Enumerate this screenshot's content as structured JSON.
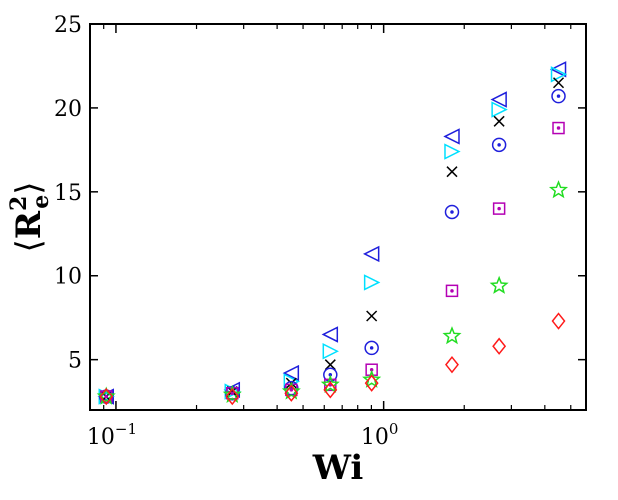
{
  "chart_data": {
    "type": "scatter",
    "xscale": "log",
    "xlim": [
      0.08,
      5.7
    ],
    "ylim": [
      2,
      25
    ],
    "grid": false,
    "xlabel": "Wi",
    "ylabel": {
      "base": "R",
      "subscript": "e",
      "superscript": "2"
    },
    "yticks": [
      5,
      10,
      15,
      20,
      25
    ],
    "xticks": [
      {
        "value": 0.1,
        "base": "10",
        "exp": "−1"
      },
      {
        "value": 1,
        "base": "10",
        "exp": "0"
      }
    ],
    "x": [
      0.092,
      0.272,
      0.452,
      0.632,
      0.902,
      1.8,
      2.7,
      4.5
    ],
    "series": [
      {
        "marker": "triangle-left",
        "color": "#1f1fdc",
        "values": [
          2.8,
          3.2,
          4.2,
          6.5,
          11.3,
          18.3,
          20.5,
          22.3
        ]
      },
      {
        "marker": "triangle-right",
        "color": "#00e0ff",
        "values": [
          2.8,
          3.1,
          3.7,
          5.5,
          9.6,
          17.4,
          19.9,
          22.0
        ]
      },
      {
        "marker": "x",
        "color": "#000000",
        "values": [
          2.8,
          3.1,
          3.6,
          4.7,
          7.6,
          16.2,
          19.2,
          21.5
        ]
      },
      {
        "marker": "circle-dot",
        "color": "#1f1fdc",
        "values": [
          2.8,
          3.0,
          3.3,
          4.1,
          5.7,
          13.8,
          17.8,
          20.7
        ]
      },
      {
        "marker": "square-dot",
        "color": "#b400b4",
        "values": [
          2.8,
          3.0,
          3.2,
          3.5,
          4.4,
          9.1,
          14.0,
          18.8
        ]
      },
      {
        "marker": "star",
        "color": "#22dd22",
        "values": [
          2.8,
          2.9,
          3.1,
          3.5,
          3.8,
          6.4,
          9.4,
          15.1
        ]
      },
      {
        "marker": "diamond",
        "color": "#ff1a1a",
        "values": [
          2.8,
          2.8,
          3.0,
          3.2,
          3.6,
          4.7,
          5.8,
          7.3
        ]
      }
    ]
  }
}
